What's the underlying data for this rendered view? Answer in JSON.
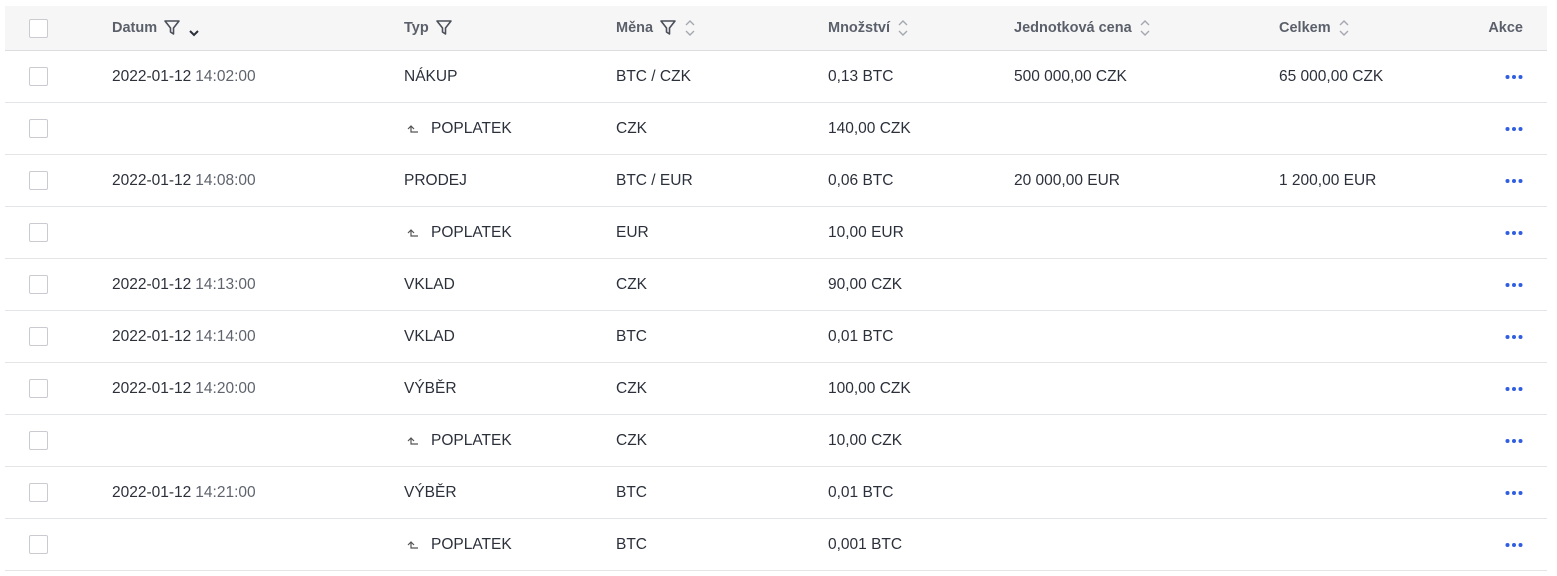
{
  "header": {
    "columns": [
      {
        "label": "Datum",
        "filter": true,
        "sort": "desc"
      },
      {
        "label": "Typ",
        "filter": true
      },
      {
        "label": "Měna",
        "filter": true,
        "sort": "none"
      },
      {
        "label": "Množství",
        "sort": "none"
      },
      {
        "label": "Jednotková cena",
        "sort": "none"
      },
      {
        "label": "Celkem",
        "sort": "none"
      },
      {
        "label": "Akce"
      }
    ]
  },
  "rows": [
    {
      "date": "2022-01-12",
      "time": "14:02:00",
      "type": "NÁKUP",
      "currency": "BTC / CZK",
      "amount": "0,13 BTC",
      "unit_price": "500 000,00 CZK",
      "total": "65 000,00 CZK"
    },
    {
      "fee": true,
      "type": "POPLATEK",
      "currency": "CZK",
      "amount": "140,00 CZK"
    },
    {
      "date": "2022-01-12",
      "time": "14:08:00",
      "type": "PRODEJ",
      "currency": "BTC / EUR",
      "amount": "0,06 BTC",
      "unit_price": "20 000,00 EUR",
      "total": "1 200,00 EUR"
    },
    {
      "fee": true,
      "type": "POPLATEK",
      "currency": "EUR",
      "amount": "10,00 EUR"
    },
    {
      "date": "2022-01-12",
      "time": "14:13:00",
      "type": "VKLAD",
      "currency": "CZK",
      "amount": "90,00 CZK"
    },
    {
      "date": "2022-01-12",
      "time": "14:14:00",
      "type": "VKLAD",
      "currency": "BTC",
      "amount": "0,01 BTC"
    },
    {
      "date": "2022-01-12",
      "time": "14:20:00",
      "type": "VÝBĚR",
      "currency": "CZK",
      "amount": "100,00 CZK"
    },
    {
      "fee": true,
      "type": "POPLATEK",
      "currency": "CZK",
      "amount": "10,00 CZK"
    },
    {
      "date": "2022-01-12",
      "time": "14:21:00",
      "type": "VÝBĚR",
      "currency": "BTC",
      "amount": "0,01 BTC"
    },
    {
      "fee": true,
      "type": "POPLATEK",
      "currency": "BTC",
      "amount": "0,001 BTC"
    }
  ]
}
